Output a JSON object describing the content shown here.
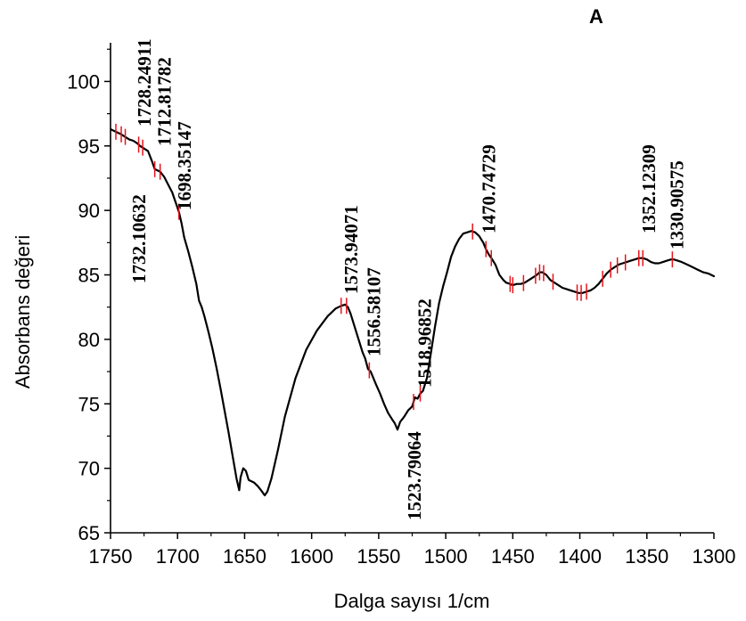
{
  "chart_data": {
    "type": "line",
    "panel_label": "A",
    "xlabel": "Dalga sayısı 1/cm",
    "ylabel": "Absorbans değeri",
    "xlim": [
      1750,
      1300
    ],
    "ylim": [
      65,
      103
    ],
    "x_reversed": true,
    "x_ticks": [
      1750,
      1700,
      1650,
      1600,
      1550,
      1500,
      1450,
      1400,
      1350,
      1300
    ],
    "x_tick_labels": [
      "1750",
      "1700",
      "1650",
      "1600",
      "1550",
      "1500",
      "1450",
      "1400",
      "1350",
      "1300"
    ],
    "y_ticks": [
      65,
      70,
      75,
      80,
      85,
      90,
      95,
      100
    ],
    "y_tick_labels": [
      "65",
      "70",
      "75",
      "80",
      "85",
      "90",
      "95",
      "100"
    ],
    "grid": false,
    "colors": {
      "line": "#000000",
      "peak_marker": "#e8131c",
      "axis": "#000000"
    },
    "series": [
      {
        "x": [
          1750,
          1746,
          1742,
          1739,
          1736,
          1733,
          1730,
          1728,
          1725,
          1722,
          1719,
          1717,
          1715,
          1713,
          1710,
          1707,
          1704,
          1702,
          1699,
          1697,
          1695,
          1692,
          1689,
          1686,
          1684,
          1682,
          1680,
          1677,
          1674,
          1671,
          1668,
          1665,
          1662,
          1659,
          1656,
          1654,
          1653,
          1651,
          1649,
          1647,
          1645,
          1643,
          1640,
          1637,
          1635,
          1633,
          1630,
          1625,
          1620,
          1612,
          1604,
          1596,
          1588,
          1582,
          1578,
          1575,
          1573,
          1571,
          1568,
          1565,
          1562,
          1560,
          1558,
          1556,
          1554,
          1552,
          1549,
          1546,
          1543,
          1540,
          1538,
          1536,
          1534,
          1531,
          1528,
          1525,
          1523,
          1521,
          1519,
          1517,
          1514,
          1511,
          1508,
          1505,
          1502,
          1499,
          1496,
          1493,
          1490,
          1487,
          1484,
          1481,
          1478,
          1475,
          1472,
          1470,
          1468,
          1466,
          1463,
          1460,
          1457,
          1455,
          1452,
          1450,
          1447,
          1444,
          1441,
          1438,
          1435,
          1432,
          1430,
          1428,
          1425,
          1422,
          1419,
          1416,
          1413,
          1410,
          1407,
          1404,
          1401,
          1398,
          1395,
          1392,
          1389,
          1386,
          1383,
          1380,
          1377,
          1374,
          1371,
          1368,
          1365,
          1362,
          1359,
          1356,
          1353,
          1350,
          1347,
          1344,
          1341,
          1338,
          1335,
          1332,
          1330,
          1327,
          1324,
          1320,
          1316,
          1312,
          1308,
          1304,
          1300
        ],
        "y": [
          96.3,
          96.1,
          95.9,
          95.7,
          95.5,
          95.4,
          95.2,
          95.0,
          94.8,
          94.6,
          93.8,
          93.2,
          93.1,
          93.0,
          92.6,
          92.0,
          91.4,
          90.8,
          89.9,
          89.0,
          87.9,
          86.8,
          85.6,
          84.3,
          83.0,
          82.5,
          81.8,
          80.6,
          79.3,
          77.8,
          76.2,
          74.5,
          72.8,
          71.0,
          69.2,
          68.3,
          69.3,
          70.0,
          69.8,
          69.1,
          69.0,
          68.9,
          68.6,
          68.2,
          67.9,
          68.2,
          69.2,
          71.5,
          74.0,
          77.0,
          79.2,
          80.7,
          81.8,
          82.4,
          82.6,
          82.7,
          82.5,
          82.0,
          81.0,
          80.0,
          79.0,
          78.5,
          77.7,
          77.5,
          77.0,
          76.5,
          75.8,
          75.0,
          74.3,
          73.8,
          73.5,
          73.0,
          73.6,
          74.0,
          74.5,
          74.8,
          75.5,
          75.4,
          75.8,
          76.0,
          77.0,
          79.0,
          81.0,
          82.8,
          84.1,
          85.2,
          86.4,
          87.2,
          87.8,
          88.2,
          88.3,
          88.4,
          88.3,
          88.0,
          87.5,
          87.0,
          86.6,
          86.3,
          85.8,
          85.0,
          84.6,
          84.4,
          84.3,
          84.2,
          84.3,
          84.3,
          84.4,
          84.6,
          84.8,
          85.0,
          85.2,
          85.2,
          85.0,
          84.6,
          84.4,
          84.2,
          84.0,
          83.9,
          83.8,
          83.7,
          83.6,
          83.6,
          83.7,
          83.8,
          84.0,
          84.3,
          84.7,
          85.1,
          85.4,
          85.6,
          85.8,
          85.9,
          86.0,
          86.1,
          86.2,
          86.3,
          86.3,
          86.2,
          86.0,
          85.9,
          85.9,
          86.0,
          86.1,
          86.2,
          86.2,
          86.1,
          86.0,
          85.8,
          85.6,
          85.4,
          85.2,
          85.1,
          84.9
        ]
      }
    ],
    "peak_markers": [
      1746,
      1742,
      1739,
      1729,
      1726,
      1717,
      1713,
      1699,
      1578,
      1574,
      1557,
      1524,
      1519,
      1480,
      1470,
      1466,
      1452,
      1450,
      1442,
      1433,
      1430,
      1427,
      1420,
      1402,
      1399,
      1395,
      1383,
      1377,
      1372,
      1366,
      1356,
      1353,
      1331
    ],
    "annotations": [
      {
        "label": "1732.10632",
        "x": 1732
      },
      {
        "label": "1728.24911",
        "x": 1728
      },
      {
        "label": "1712.81782",
        "x": 1713
      },
      {
        "label": "1698.35147",
        "x": 1698
      },
      {
        "label": "1573.94071",
        "x": 1574
      },
      {
        "label": "1556.58107",
        "x": 1557
      },
      {
        "label": "1523.79064",
        "x": 1524
      },
      {
        "label": "1518.96852",
        "x": 1519
      },
      {
        "label": "1470.74729",
        "x": 1471
      },
      {
        "label": "1352.12309",
        "x": 1352
      },
      {
        "label": "1330.90575",
        "x": 1331
      }
    ]
  }
}
